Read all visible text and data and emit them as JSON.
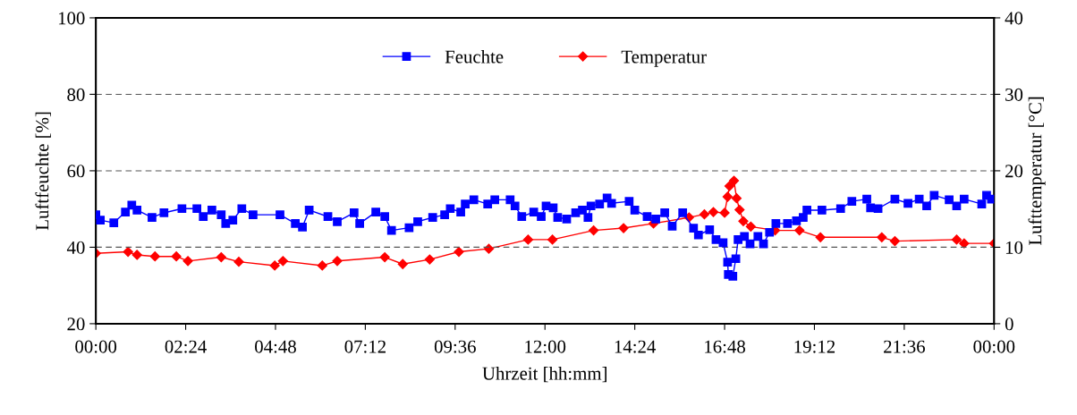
{
  "chart_data": {
    "type": "line",
    "xlabel": "Uhrzeit [hh:mm]",
    "ylabel": "Luftfeuchte [%]",
    "y2label": "Lufttemperatur [°C]",
    "xlim": [
      0,
      24
    ],
    "xticks": [
      {
        "value": 0,
        "label": "00:00"
      },
      {
        "value": 2.4,
        "label": "02:24"
      },
      {
        "value": 4.8,
        "label": "04:48"
      },
      {
        "value": 7.2,
        "label": "07:12"
      },
      {
        "value": 9.6,
        "label": "09:36"
      },
      {
        "value": 12,
        "label": "12:00"
      },
      {
        "value": 14.4,
        "label": "14:24"
      },
      {
        "value": 16.8,
        "label": "16:48"
      },
      {
        "value": 19.2,
        "label": "19:12"
      },
      {
        "value": 21.6,
        "label": "21:36"
      },
      {
        "value": 24,
        "label": "00:00"
      }
    ],
    "ylim": [
      20,
      100
    ],
    "yticks": [
      20,
      40,
      60,
      80,
      100
    ],
    "y2lim": [
      0,
      40
    ],
    "y2ticks": [
      0,
      10,
      20,
      30,
      40
    ],
    "grid": "y",
    "legend": "top",
    "line_style": "solid",
    "series": [
      {
        "name": "Feuchte",
        "color": "#0000ff",
        "marker": "square",
        "x": [
          0,
          0.12,
          0.48,
          0.79,
          0.96,
          1.1,
          1.5,
          1.82,
          2.3,
          2.7,
          2.87,
          3.1,
          3.35,
          3.47,
          3.66,
          3.9,
          4.2,
          4.92,
          5.33,
          5.52,
          5.7,
          6.2,
          6.45,
          6.9,
          7.05,
          7.48,
          7.72,
          7.9,
          8.37,
          8.6,
          9.0,
          9.32,
          9.47,
          9.75,
          9.87,
          10.1,
          10.47,
          10.66,
          11.07,
          11.2,
          11.38,
          11.7,
          11.9,
          12.03,
          12.22,
          12.34,
          12.58,
          12.82,
          13.0,
          13.15,
          13.23,
          13.46,
          13.66,
          13.78,
          14.25,
          14.4,
          14.73,
          14.96,
          15.2,
          15.4,
          15.68,
          15.97,
          16.1,
          16.4,
          16.57,
          16.76,
          16.88,
          16.9,
          17.02,
          17.1,
          17.16,
          17.33,
          17.48,
          17.69,
          17.84,
          18.0,
          18.17,
          18.48,
          18.72,
          18.9,
          19.0,
          19.4,
          19.9,
          20.2,
          20.6,
          20.7,
          20.9,
          21.35,
          21.7,
          22.0,
          22.2,
          22.4,
          22.8,
          23.0,
          23.2,
          23.67,
          23.8,
          23.93
        ],
        "values": [
          48.5,
          47.1,
          46.4,
          49.2,
          51,
          49.7,
          47.8,
          49,
          50.1,
          50.1,
          48,
          49.7,
          48.5,
          46.2,
          47.1,
          50.1,
          48.5,
          48.5,
          46.2,
          45.3,
          49.7,
          48,
          46.7,
          49,
          46.2,
          49.2,
          48,
          44.4,
          45.1,
          46.7,
          47.8,
          48.5,
          50.1,
          49.2,
          51.3,
          52.4,
          51.3,
          52.4,
          52.4,
          50.8,
          48,
          49.2,
          48,
          50.8,
          50.3,
          47.8,
          47.4,
          49,
          49.7,
          47.8,
          50.8,
          51.3,
          52.9,
          51.5,
          52,
          49.7,
          48,
          47.4,
          49,
          45.5,
          49,
          45,
          43.2,
          44.6,
          42,
          41.2,
          36.1,
          32.9,
          32.4,
          37,
          42,
          42.8,
          40.9,
          42.8,
          40.9,
          43.9,
          46.2,
          46.2,
          46.9,
          47.8,
          49.7,
          49.7,
          50.1,
          52,
          52.6,
          50.3,
          50.1,
          52.6,
          51.5,
          52.6,
          50.8,
          53.6,
          52.4,
          50.8,
          52.6,
          51.3,
          53.6,
          52.6
        ]
      },
      {
        "name": "Temperatur",
        "color": "#ff0000",
        "marker": "diamond",
        "axis": "y2",
        "x": [
          0,
          0.86,
          1.1,
          1.58,
          2.15,
          2.46,
          3.35,
          3.82,
          4.78,
          5.0,
          6.05,
          6.45,
          7.72,
          8.2,
          8.92,
          9.7,
          10.5,
          11.55,
          12.2,
          13.3,
          14.1,
          14.9,
          15.85,
          16.26,
          16.5,
          16.8,
          16.88,
          16.93,
          17.05,
          17.12,
          17.2,
          17.3,
          17.5,
          18.15,
          18.8,
          19.36,
          21.0,
          21.35,
          23.0,
          23.2,
          24.0
        ],
        "values": [
          9.2,
          9.4,
          9.0,
          8.8,
          8.8,
          8.2,
          8.7,
          8.1,
          7.6,
          8.2,
          7.6,
          8.2,
          8.7,
          7.8,
          8.4,
          9.4,
          9.8,
          11.0,
          11.0,
          12.2,
          12.5,
          13.1,
          13.9,
          14.3,
          14.6,
          14.5,
          16.6,
          18.0,
          18.7,
          16.4,
          14.9,
          13.4,
          12.7,
          12.2,
          12.2,
          11.3,
          11.3,
          10.8,
          11.0,
          10.5,
          10.5
        ]
      }
    ]
  }
}
